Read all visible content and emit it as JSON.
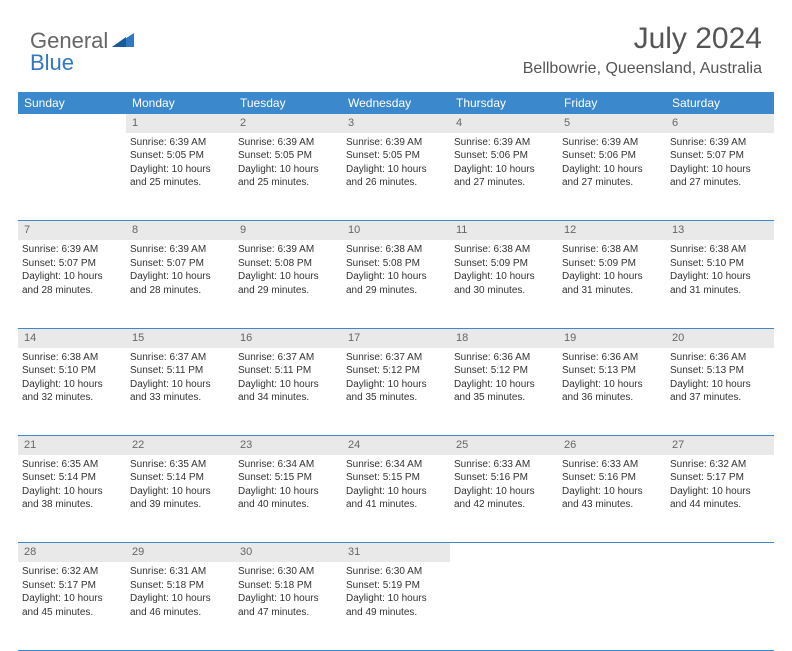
{
  "logo": {
    "part1": "General",
    "part2": "Blue"
  },
  "title": "July 2024",
  "location": "Bellbowrie, Queensland, Australia",
  "colors": {
    "header_bg": "#3b88cc",
    "daynum_bg": "#e9e9e9",
    "text": "#333333",
    "title_text": "#555555",
    "logo_gray": "#666666",
    "logo_blue": "#2f78c2"
  },
  "weekdays": [
    "Sunday",
    "Monday",
    "Tuesday",
    "Wednesday",
    "Thursday",
    "Friday",
    "Saturday"
  ],
  "weeks": [
    {
      "days": [
        {
          "num": "",
          "content": ""
        },
        {
          "num": "1",
          "content": "Sunrise: 6:39 AM\nSunset: 5:05 PM\nDaylight: 10 hours and 25 minutes."
        },
        {
          "num": "2",
          "content": "Sunrise: 6:39 AM\nSunset: 5:05 PM\nDaylight: 10 hours and 25 minutes."
        },
        {
          "num": "3",
          "content": "Sunrise: 6:39 AM\nSunset: 5:05 PM\nDaylight: 10 hours and 26 minutes."
        },
        {
          "num": "4",
          "content": "Sunrise: 6:39 AM\nSunset: 5:06 PM\nDaylight: 10 hours and 27 minutes."
        },
        {
          "num": "5",
          "content": "Sunrise: 6:39 AM\nSunset: 5:06 PM\nDaylight: 10 hours and 27 minutes."
        },
        {
          "num": "6",
          "content": "Sunrise: 6:39 AM\nSunset: 5:07 PM\nDaylight: 10 hours and 27 minutes."
        }
      ]
    },
    {
      "days": [
        {
          "num": "7",
          "content": "Sunrise: 6:39 AM\nSunset: 5:07 PM\nDaylight: 10 hours and 28 minutes."
        },
        {
          "num": "8",
          "content": "Sunrise: 6:39 AM\nSunset: 5:07 PM\nDaylight: 10 hours and 28 minutes."
        },
        {
          "num": "9",
          "content": "Sunrise: 6:39 AM\nSunset: 5:08 PM\nDaylight: 10 hours and 29 minutes."
        },
        {
          "num": "10",
          "content": "Sunrise: 6:38 AM\nSunset: 5:08 PM\nDaylight: 10 hours and 29 minutes."
        },
        {
          "num": "11",
          "content": "Sunrise: 6:38 AM\nSunset: 5:09 PM\nDaylight: 10 hours and 30 minutes."
        },
        {
          "num": "12",
          "content": "Sunrise: 6:38 AM\nSunset: 5:09 PM\nDaylight: 10 hours and 31 minutes."
        },
        {
          "num": "13",
          "content": "Sunrise: 6:38 AM\nSunset: 5:10 PM\nDaylight: 10 hours and 31 minutes."
        }
      ]
    },
    {
      "days": [
        {
          "num": "14",
          "content": "Sunrise: 6:38 AM\nSunset: 5:10 PM\nDaylight: 10 hours and 32 minutes."
        },
        {
          "num": "15",
          "content": "Sunrise: 6:37 AM\nSunset: 5:11 PM\nDaylight: 10 hours and 33 minutes."
        },
        {
          "num": "16",
          "content": "Sunrise: 6:37 AM\nSunset: 5:11 PM\nDaylight: 10 hours and 34 minutes."
        },
        {
          "num": "17",
          "content": "Sunrise: 6:37 AM\nSunset: 5:12 PM\nDaylight: 10 hours and 35 minutes."
        },
        {
          "num": "18",
          "content": "Sunrise: 6:36 AM\nSunset: 5:12 PM\nDaylight: 10 hours and 35 minutes."
        },
        {
          "num": "19",
          "content": "Sunrise: 6:36 AM\nSunset: 5:13 PM\nDaylight: 10 hours and 36 minutes."
        },
        {
          "num": "20",
          "content": "Sunrise: 6:36 AM\nSunset: 5:13 PM\nDaylight: 10 hours and 37 minutes."
        }
      ]
    },
    {
      "days": [
        {
          "num": "21",
          "content": "Sunrise: 6:35 AM\nSunset: 5:14 PM\nDaylight: 10 hours and 38 minutes."
        },
        {
          "num": "22",
          "content": "Sunrise: 6:35 AM\nSunset: 5:14 PM\nDaylight: 10 hours and 39 minutes."
        },
        {
          "num": "23",
          "content": "Sunrise: 6:34 AM\nSunset: 5:15 PM\nDaylight: 10 hours and 40 minutes."
        },
        {
          "num": "24",
          "content": "Sunrise: 6:34 AM\nSunset: 5:15 PM\nDaylight: 10 hours and 41 minutes."
        },
        {
          "num": "25",
          "content": "Sunrise: 6:33 AM\nSunset: 5:16 PM\nDaylight: 10 hours and 42 minutes."
        },
        {
          "num": "26",
          "content": "Sunrise: 6:33 AM\nSunset: 5:16 PM\nDaylight: 10 hours and 43 minutes."
        },
        {
          "num": "27",
          "content": "Sunrise: 6:32 AM\nSunset: 5:17 PM\nDaylight: 10 hours and 44 minutes."
        }
      ]
    },
    {
      "days": [
        {
          "num": "28",
          "content": "Sunrise: 6:32 AM\nSunset: 5:17 PM\nDaylight: 10 hours and 45 minutes."
        },
        {
          "num": "29",
          "content": "Sunrise: 6:31 AM\nSunset: 5:18 PM\nDaylight: 10 hours and 46 minutes."
        },
        {
          "num": "30",
          "content": "Sunrise: 6:30 AM\nSunset: 5:18 PM\nDaylight: 10 hours and 47 minutes."
        },
        {
          "num": "31",
          "content": "Sunrise: 6:30 AM\nSunset: 5:19 PM\nDaylight: 10 hours and 49 minutes."
        },
        {
          "num": "",
          "content": ""
        },
        {
          "num": "",
          "content": ""
        },
        {
          "num": "",
          "content": ""
        }
      ]
    }
  ]
}
